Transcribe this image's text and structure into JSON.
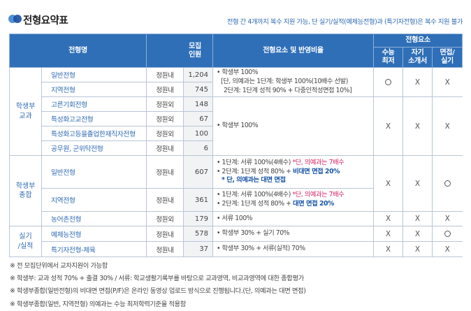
{
  "title": "전형요약표",
  "top_note": "전형 간 4개까지 복수 지원 가능, 단 실기/실적(예체능전형)과 (특기자전형)은 복수 지원 불가",
  "headers": {
    "type_name": "전형명",
    "recruit": "모집\n인원",
    "elements": "전형요소 및 반영비율",
    "elements_group": "전형요소",
    "csat": "수능\n최저",
    "essay": "자기\n소개서",
    "interview": "면접/\n실기"
  },
  "marks": {
    "circle": "○",
    "x": "X"
  },
  "groups": {
    "gyogwa": "학생부\n교과",
    "jonghap": "학생부\n종합",
    "silgi": "실기\n/실적"
  },
  "rows": [
    {
      "name": "일반전형",
      "quota": "정원내",
      "count": "1,204"
    },
    {
      "name": "지역전형",
      "quota": "정원내",
      "count": "745"
    },
    {
      "name": "고른기회전형",
      "quota": "정원외",
      "count": "148"
    },
    {
      "name": "특성화고교전형",
      "quota": "정원외",
      "count": "67"
    },
    {
      "name": "특성화고등을졸업한재직자전형",
      "quota": "정원외",
      "count": "100"
    },
    {
      "name": "공무원, 군위탁전형",
      "quota": "정원내",
      "count": "6"
    },
    {
      "name": "일반전형",
      "quota": "정원내",
      "count": "607"
    },
    {
      "name": "지역전형",
      "quota": "정원내",
      "count": "361"
    },
    {
      "name": "농어촌전형",
      "quota": "정원외",
      "count": "179"
    },
    {
      "name": "예체능전형",
      "quota": "정원내",
      "count": "578"
    },
    {
      "name": "특기자전형-체육",
      "quota": "정원내",
      "count": "37"
    }
  ],
  "elements": {
    "e1_l1": "• 학생부 100%",
    "e1_l2": "[단, 의예과는 1단계: 학생부 100%(10배수 선발)",
    "e1_l3": "2단계: 1단계 성적 90% + 다중인적성면접 10%]",
    "e2": "• 학생부 100%",
    "e3_l1a": "• 1단계: 서류 100%(4배수) ",
    "e3_l1b": "*단, 의예과는 7배수",
    "e3_l2a": "• 2단계: 1단계 성적 80% + ",
    "e3_l2b": "비대면 면접 20%",
    "e3_l3": "* 단, 의예과는 대면 면접",
    "e4_l1a": "• 1단계: 서류 100%(4배수) ",
    "e4_l1b": "*단, 의예과는 7배수",
    "e4_l2a": "• 2단계: 1단계 성적 80% + ",
    "e4_l2b": "대면 면접 20%",
    "e5": "• 서류 100%",
    "e6": "• 학생부 30% + 실기 70%",
    "e7": "• 학생부 30% + 서류(실적) 70%"
  },
  "footnotes": [
    "※ 전 모집단위에서 교차지원이 가능함",
    "※ 학생부: 교과 성적 70% + 출결 30% / 서류: 학교생활기록부를 바탕으로 교과영역, 비교과영역에 대한 종합평가",
    "※ 학생부종합(일반전형)의 비대면 면접(P/F)은 온라인 동영상 업로드 방식으로 진행됩니다.(단, 의예과는 대면 면접)",
    "※ 학생부종합(일반, 지역전형) 의예과는 수능 최저학력기준을 적용함"
  ],
  "colors": {
    "header_bg": "#2f6fb7",
    "accent_blue": "#2d69b3",
    "accent_red": "#d6266a"
  }
}
